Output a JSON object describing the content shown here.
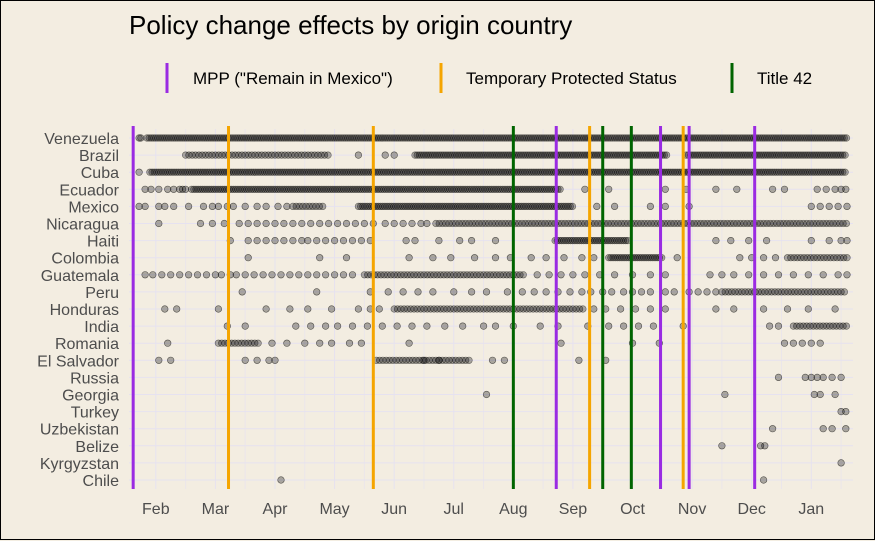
{
  "chart_data": {
    "type": "scatter",
    "title": "Policy change effects by origin country",
    "xlabel": "",
    "ylabel": "",
    "x_ticks": [
      "Feb",
      "Mar",
      "Apr",
      "May",
      "Jun",
      "Jul",
      "Aug",
      "Sep",
      "Oct",
      "Nov",
      "Dec",
      "Jan"
    ],
    "x_range": [
      0.55,
      12.7
    ],
    "categories": [
      "Venezuela",
      "Brazil",
      "Cuba",
      "Ecuador",
      "Mexico",
      "Nicaragua",
      "Haiti",
      "Colombia",
      "Guatemala",
      "Peru",
      "Honduras",
      "India",
      "Romania",
      "El Salvador",
      "Russia",
      "Georgia",
      "Turkey",
      "Uzbekistan",
      "Belize",
      "Kyrgyzstan",
      "Chile"
    ],
    "legend": {
      "position": "top",
      "entries": [
        {
          "name": "MPP (\"Remain in Mexico\")",
          "color": "#9a2be2"
        },
        {
          "name": "Temporary Protected Status",
          "color": "#f5a500"
        },
        {
          "name": "Title 42",
          "color": "#006400"
        }
      ]
    },
    "grid": true,
    "point_color": "#000000",
    "point_opacity": 0.3,
    "vertical_lines": [
      {
        "policy": "MPP (\"Remain in Mexico\")",
        "color": "#9a2be2",
        "x": [
          0.62,
          7.72,
          9.47,
          9.95,
          11.05
        ]
      },
      {
        "policy": "Temporary Protected Status",
        "color": "#f5a500",
        "x": [
          2.22,
          4.65,
          8.28,
          9.85
        ]
      },
      {
        "policy": "Title 42",
        "color": "#006400",
        "x": [
          7.0,
          8.5,
          8.98
        ]
      }
    ],
    "series": [
      {
        "category": "Venezuela",
        "segments": [
          [
            0.85,
            12.6,
            3
          ]
        ],
        "points": [
          0.75,
          0.72
        ]
      },
      {
        "category": "Brazil",
        "segments": [
          [
            1.5,
            3.9,
            2
          ],
          [
            5.35,
            9.6,
            3
          ],
          [
            9.9,
            12.6,
            3
          ]
        ],
        "points": [
          4.4,
          4.85,
          5.0
        ]
      },
      {
        "category": "Cuba",
        "segments": [
          [
            0.9,
            12.6,
            3
          ]
        ],
        "points": [
          0.72
        ]
      },
      {
        "category": "Ecuador",
        "segments": [
          [
            1.6,
            7.8,
            3
          ]
        ],
        "points": [
          0.82,
          0.92,
          1.05,
          1.2,
          1.3,
          1.4,
          1.45,
          1.5,
          8.2,
          8.6,
          9.55,
          9.9,
          10.4,
          10.75,
          11.35,
          11.55,
          12.1,
          12.25,
          12.4,
          12.5,
          12.58
        ]
      },
      {
        "category": "Mexico",
        "segments": [
          [
            3.3,
            3.8,
            2
          ],
          [
            4.4,
            8.0,
            3
          ]
        ],
        "points": [
          0.72,
          0.82,
          1.05,
          1.15,
          1.3,
          1.55,
          1.8,
          1.95,
          2.05,
          2.2,
          2.3,
          2.5,
          2.7,
          2.85,
          3.05,
          3.2,
          8.4,
          8.7,
          9.3,
          9.55,
          9.95,
          12.0,
          12.15,
          12.3,
          12.45,
          12.6
        ]
      },
      {
        "category": "Nicaragua",
        "segments": [
          [
            5.7,
            12.6,
            2
          ]
        ],
        "points": [
          1.05,
          1.75,
          1.95,
          2.15,
          2.4,
          2.55,
          2.7,
          2.85,
          3.0,
          3.15,
          3.3,
          3.45,
          3.6,
          3.75,
          3.9,
          4.05,
          4.2,
          4.35,
          4.5,
          4.65,
          4.85,
          5.0,
          5.15,
          5.3,
          5.45,
          5.55
        ]
      },
      {
        "category": "Haiti",
        "segments": [
          [
            7.7,
            8.95,
            3
          ]
        ],
        "points": [
          2.25,
          2.55,
          2.7,
          2.85,
          3.0,
          3.15,
          3.3,
          3.45,
          3.55,
          3.7,
          3.85,
          4.0,
          4.15,
          4.3,
          4.45,
          4.6,
          5.2,
          5.35,
          5.75,
          6.1,
          6.3,
          6.7,
          10.4,
          10.65,
          10.95,
          11.25,
          12.0,
          12.3,
          12.5,
          12.6
        ]
      },
      {
        "category": "Colombia",
        "segments": [
          [
            8.6,
            9.5,
            3
          ],
          [
            11.6,
            12.6,
            2
          ]
        ],
        "points": [
          2.55,
          3.75,
          4.2,
          5.25,
          5.65,
          5.95,
          6.35,
          6.7,
          6.95,
          7.3,
          7.55,
          7.85,
          8.15,
          8.35,
          9.75,
          10.8,
          11.0,
          11.2,
          11.4
        ]
      },
      {
        "category": "Guatemala",
        "segments": [
          [
            4.5,
            7.2,
            2
          ]
        ],
        "points": [
          0.82,
          0.95,
          1.1,
          1.25,
          1.4,
          1.55,
          1.7,
          1.85,
          2.0,
          2.1,
          2.25,
          2.35,
          2.5,
          2.65,
          2.8,
          2.95,
          3.1,
          3.25,
          3.4,
          3.55,
          3.7,
          3.85,
          4.0,
          4.15,
          4.3,
          7.4,
          7.6,
          7.8,
          8.0,
          8.2,
          8.45,
          8.7,
          9.0,
          9.3,
          9.55,
          10.3,
          10.5,
          10.7,
          10.95,
          11.2,
          11.45,
          11.7,
          11.95,
          12.2,
          12.45,
          12.6
        ]
      },
      {
        "category": "Peru",
        "segments": [
          [
            10.5,
            12.6,
            2
          ]
        ],
        "points": [
          2.45,
          3.7,
          4.6,
          4.9,
          5.15,
          5.4,
          5.65,
          6.0,
          6.3,
          6.55,
          6.9,
          7.15,
          7.35,
          7.55,
          7.75,
          7.95,
          8.15,
          8.3,
          8.5,
          8.65,
          8.85,
          9.0,
          9.15,
          9.3,
          9.55,
          9.7,
          9.95,
          10.1,
          10.25,
          10.4
        ]
      },
      {
        "category": "Honduras",
        "segments": [
          [
            5.0,
            8.2,
            2
          ]
        ],
        "points": [
          1.15,
          1.35,
          2.05,
          2.85,
          3.25,
          3.55,
          3.95,
          4.4,
          4.6,
          4.75,
          8.35,
          8.55,
          8.8,
          9.05,
          9.3,
          9.55,
          10.4,
          10.7,
          11.2,
          11.6,
          11.95,
          12.4
        ]
      },
      {
        "category": "India",
        "segments": [
          [
            11.7,
            12.6,
            2
          ]
        ],
        "points": [
          2.2,
          2.5,
          3.35,
          3.6,
          3.85,
          4.05,
          4.3,
          4.55,
          4.8,
          5.05,
          5.3,
          5.55,
          5.85,
          6.15,
          6.5,
          6.7,
          7.0,
          7.45,
          7.75,
          8.25,
          8.6,
          8.85,
          9.1,
          9.35,
          9.85,
          11.3,
          11.45
        ]
      },
      {
        "category": "Romania",
        "segments": [
          [
            2.05,
            2.75,
            2
          ]
        ],
        "points": [
          1.2,
          2.95,
          3.2,
          3.5,
          3.75,
          3.95,
          4.25,
          4.45,
          5.25,
          7.8,
          9.0,
          9.45,
          11.55,
          11.7,
          11.85,
          12.0,
          12.15
        ]
      },
      {
        "category": "El Salvador",
        "segments": [
          [
            4.7,
            6.3,
            2
          ]
        ],
        "points": [
          1.05,
          1.25,
          2.5,
          2.7,
          2.9,
          3.0,
          5.5,
          5.75,
          6.65,
          6.85,
          8.1,
          8.55
        ]
      },
      {
        "category": "Russia",
        "points": [
          11.45,
          11.9,
          12.0,
          12.1,
          12.2,
          12.35,
          12.5
        ]
      },
      {
        "category": "Georgia",
        "points": [
          6.55,
          10.55,
          12.05,
          12.15,
          12.4
        ]
      },
      {
        "category": "Turkey",
        "points": [
          12.5,
          12.58
        ]
      },
      {
        "category": "Uzbekistan",
        "points": [
          11.35,
          12.2,
          12.35,
          12.58
        ]
      },
      {
        "category": "Belize",
        "points": [
          10.5,
          11.15,
          11.22
        ]
      },
      {
        "category": "Kyrgyzstan",
        "points": [
          12.5
        ]
      },
      {
        "category": "Chile",
        "points": [
          3.1,
          11.2
        ]
      }
    ]
  }
}
